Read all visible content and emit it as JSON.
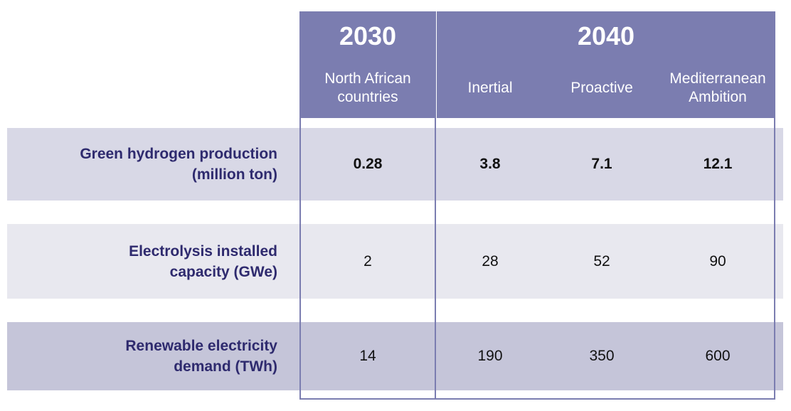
{
  "chart_data": {
    "type": "table",
    "years": [
      "2030",
      "2040"
    ],
    "columns": [
      "North African countries",
      "Inertial",
      "Proactive",
      "Mediterranean Ambition"
    ],
    "column_lines": [
      [
        "North African",
        "countries"
      ],
      [
        "Inertial"
      ],
      [
        "Proactive"
      ],
      [
        "Mediterranean",
        "Ambition"
      ]
    ],
    "rows": [
      {
        "label_lines": [
          "Green hydrogen production",
          "(million ton)"
        ],
        "values": [
          "0.28",
          "3.8",
          "7.1",
          "12.1"
        ],
        "bold": true,
        "band_color": "#d8d8e6"
      },
      {
        "label_lines": [
          "Electrolysis installed",
          "capacity (GWe)"
        ],
        "values": [
          "2",
          "28",
          "52",
          "90"
        ],
        "bold": false,
        "band_color": "#e8e8ef"
      },
      {
        "label_lines": [
          "Renewable electricity",
          "demand (TWh)"
        ],
        "values": [
          "14",
          "190",
          "350",
          "600"
        ],
        "bold": false,
        "band_color": "#c5c5d9"
      }
    ],
    "colors": {
      "header": "#7b7db0",
      "label_text": "#2e2a6e",
      "frame": "#7b7db0"
    }
  }
}
